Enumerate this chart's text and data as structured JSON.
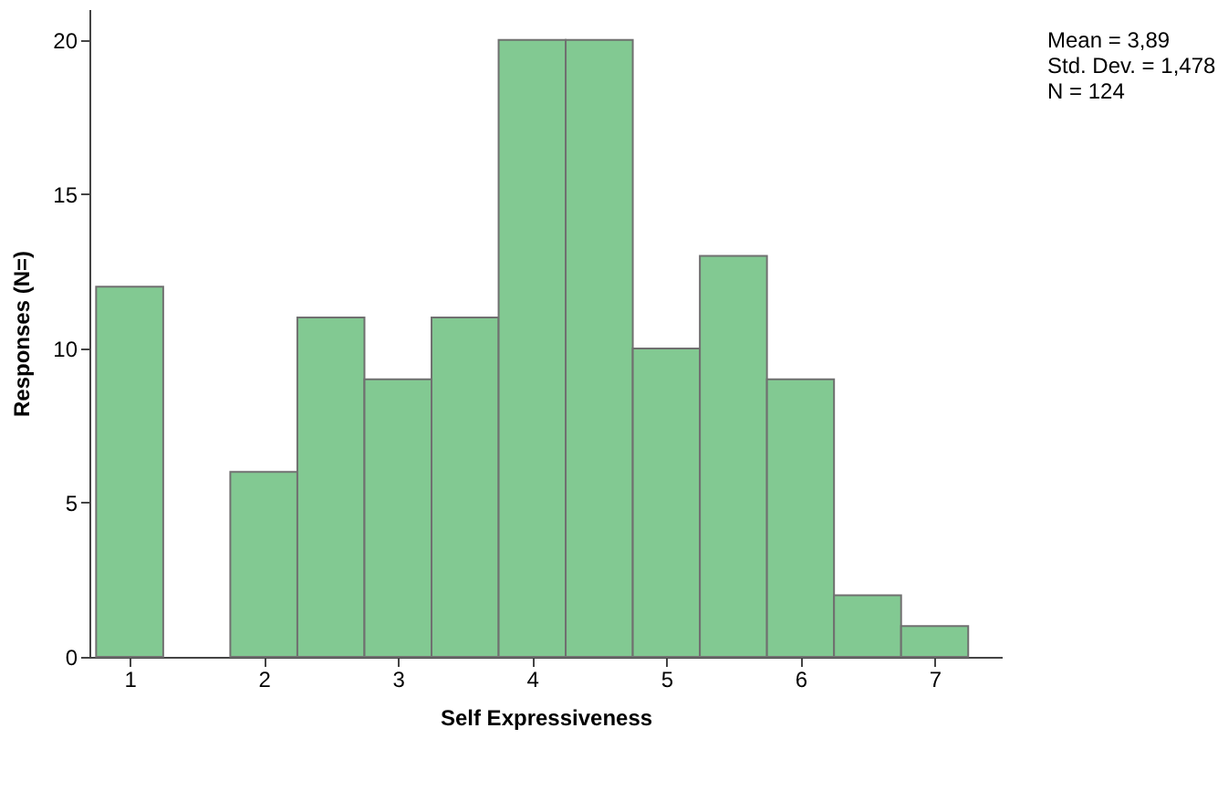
{
  "chart_data": {
    "type": "histogram",
    "xlabel": "Self Expressiveness",
    "ylabel": "Responses (N=)",
    "bins": [
      0.75,
      1.25,
      1.75,
      2.25,
      2.75,
      3.25,
      3.75,
      4.25,
      4.75,
      5.25,
      5.75,
      6.25,
      6.75,
      7.25
    ],
    "values": [
      12,
      0,
      6,
      11,
      9,
      11,
      20,
      20,
      10,
      13,
      9,
      2,
      1
    ],
    "color": "#82c992",
    "xlim": [
      0.7,
      7.5
    ],
    "xticks": [
      1,
      2,
      3,
      4,
      5,
      6,
      7
    ],
    "ylim": [
      0,
      21
    ],
    "yticks": [
      0,
      5,
      10,
      15,
      20
    ],
    "grid": false,
    "annotations": [
      "Mean = 3,89",
      "Std. Dev. = 1,478",
      "N = 124"
    ]
  }
}
